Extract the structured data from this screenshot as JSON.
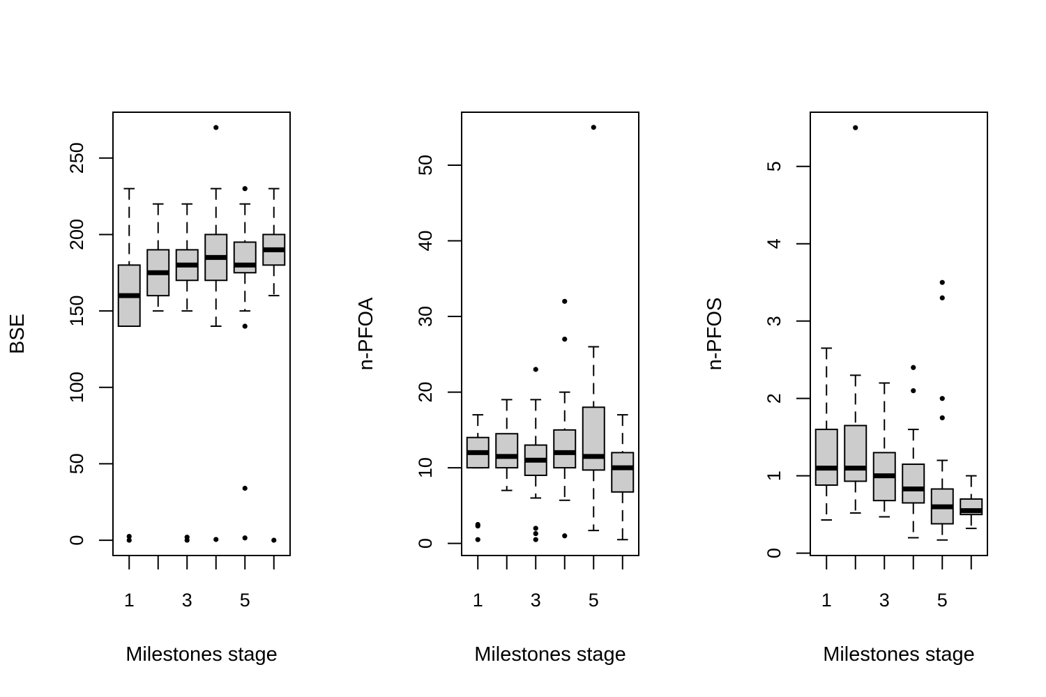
{
  "chart_data": [
    {
      "type": "boxplot",
      "xlabel": "Milestones stage",
      "ylabel": "BSE",
      "categories": [
        "1",
        "2",
        "3",
        "4",
        "5",
        "6"
      ],
      "xtick_labels": [
        "1",
        "3",
        "5"
      ],
      "yticks": [
        0,
        50,
        100,
        150,
        200,
        250
      ],
      "ylim": [
        -10,
        280
      ],
      "boxes": [
        {
          "stage": "1",
          "whisker_low": 140,
          "q1": 140,
          "median": 160,
          "q3": 180,
          "whisker_high": 230,
          "outliers": [
            0,
            2.5
          ]
        },
        {
          "stage": "2",
          "whisker_low": 150,
          "q1": 160,
          "median": 175,
          "q3": 190,
          "whisker_high": 220,
          "outliers": []
        },
        {
          "stage": "3",
          "whisker_low": 150,
          "q1": 170,
          "median": 180,
          "q3": 190,
          "whisker_high": 220,
          "outliers": [
            0,
            2
          ]
        },
        {
          "stage": "4",
          "whisker_low": 140,
          "q1": 170,
          "median": 185,
          "q3": 200,
          "whisker_high": 230,
          "outliers": [
            270,
            0.5
          ]
        },
        {
          "stage": "5",
          "whisker_low": 150,
          "q1": 175,
          "median": 180,
          "q3": 195,
          "whisker_high": 220,
          "outliers": [
            230,
            140,
            34,
            1.5
          ]
        },
        {
          "stage": "6",
          "whisker_low": 160,
          "q1": 180,
          "median": 190,
          "q3": 200,
          "whisker_high": 230,
          "outliers": [
            0
          ]
        }
      ]
    },
    {
      "type": "boxplot",
      "xlabel": "Milestones stage",
      "ylabel": "n-PFOA",
      "categories": [
        "1",
        "2",
        "3",
        "4",
        "5",
        "6"
      ],
      "xtick_labels": [
        "1",
        "3",
        "5"
      ],
      "yticks": [
        0,
        10,
        20,
        30,
        40,
        50
      ],
      "ylim": [
        -1.6,
        57
      ],
      "boxes": [
        {
          "stage": "1",
          "whisker_low": 10,
          "q1": 10,
          "median": 12,
          "q3": 14,
          "whisker_high": 17,
          "outliers": [
            2.5,
            2.3,
            0.5
          ]
        },
        {
          "stage": "2",
          "whisker_low": 7,
          "q1": 10,
          "median": 11.5,
          "q3": 14.5,
          "whisker_high": 19,
          "outliers": []
        },
        {
          "stage": "3",
          "whisker_low": 6,
          "q1": 9,
          "median": 11,
          "q3": 13,
          "whisker_high": 19,
          "outliers": [
            23,
            2,
            1.3,
            0.5
          ]
        },
        {
          "stage": "4",
          "whisker_low": 5.7,
          "q1": 10,
          "median": 12,
          "q3": 15,
          "whisker_high": 20,
          "outliers": [
            32,
            27,
            1
          ]
        },
        {
          "stage": "5",
          "whisker_low": 1.7,
          "q1": 9.7,
          "median": 11.5,
          "q3": 18,
          "whisker_high": 26,
          "outliers": [
            55
          ]
        },
        {
          "stage": "6",
          "whisker_low": 0.5,
          "q1": 6.8,
          "median": 10,
          "q3": 12,
          "whisker_high": 17,
          "outliers": []
        }
      ]
    },
    {
      "type": "boxplot",
      "xlabel": "Milestones stage",
      "ylabel": "n-PFOS",
      "categories": [
        "1",
        "2",
        "3",
        "4",
        "5",
        "6"
      ],
      "xtick_labels": [
        "1",
        "3",
        "5"
      ],
      "yticks": [
        0,
        1,
        2,
        3,
        4,
        5
      ],
      "ylim": [
        -0.03,
        5.7
      ],
      "boxes": [
        {
          "stage": "1",
          "whisker_low": 0.43,
          "q1": 0.88,
          "median": 1.1,
          "q3": 1.6,
          "whisker_high": 2.65,
          "outliers": []
        },
        {
          "stage": "2",
          "whisker_low": 0.52,
          "q1": 0.93,
          "median": 1.1,
          "q3": 1.65,
          "whisker_high": 2.3,
          "outliers": [
            5.5
          ]
        },
        {
          "stage": "3",
          "whisker_low": 0.47,
          "q1": 0.68,
          "median": 1.0,
          "q3": 1.3,
          "whisker_high": 2.2,
          "outliers": []
        },
        {
          "stage": "4",
          "whisker_low": 0.2,
          "q1": 0.65,
          "median": 0.83,
          "q3": 1.15,
          "whisker_high": 1.6,
          "outliers": [
            2.4,
            2.1
          ]
        },
        {
          "stage": "5",
          "whisker_low": 0.17,
          "q1": 0.38,
          "median": 0.6,
          "q3": 0.83,
          "whisker_high": 1.2,
          "outliers": [
            3.5,
            3.3,
            2.0,
            1.75
          ]
        },
        {
          "stage": "6",
          "whisker_low": 0.32,
          "q1": 0.5,
          "median": 0.55,
          "q3": 0.7,
          "whisker_high": 1.0,
          "outliers": []
        }
      ]
    }
  ],
  "colors": {
    "box_fill": "#cccccc",
    "stroke": "#000000",
    "background": "#ffffff"
  }
}
